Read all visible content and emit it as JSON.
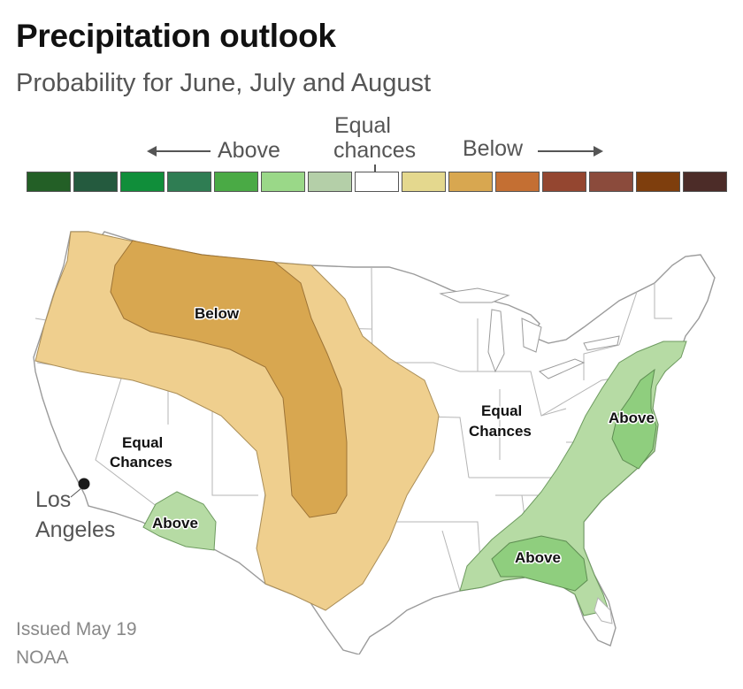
{
  "title": "Precipitation outlook",
  "subtitle": "Probability for June, July and August",
  "legend": {
    "above": "Above",
    "equal_line1": "Equal",
    "equal_line2": "chances",
    "below": "Below",
    "colors": [
      "#235f26",
      "#245a3e",
      "#108e3a",
      "#2f7d53",
      "#4aaa45",
      "#9ad888",
      "#b4cfa8",
      "#ffffff",
      "#e4d88e",
      "#d8a750",
      "#c46f33",
      "#944630",
      "#8b4b3c",
      "#7e3e0d",
      "#4c2c28"
    ]
  },
  "map": {
    "regions": [
      {
        "label": "Below",
        "category": "below",
        "color": "#d8a750"
      },
      {
        "label": "Below",
        "category": "below-outer",
        "color": "#efcf8e"
      },
      {
        "label": "Above",
        "category": "above-southwest",
        "color": "#b6dba4"
      },
      {
        "label": "Above",
        "category": "above-atlantic",
        "color": "#8fce7e"
      },
      {
        "label": "Above",
        "category": "above-florida",
        "color": "#8fce7e"
      }
    ],
    "labels": {
      "below": "Below",
      "equal_west_1": "Equal",
      "equal_west_2": "Chances",
      "equal_east_1": "Equal",
      "equal_east_2": "Chances",
      "above_sw": "Above",
      "above_east": "Above",
      "above_south": "Above"
    },
    "city": {
      "line1": "Los",
      "line2": "Angeles"
    },
    "colors": {
      "land": "#ffffff",
      "border": "#999999",
      "below_inner": "#d8a750",
      "below_outer": "#efcf8e",
      "above_light": "#b6dba4",
      "above_dark": "#8fce7e"
    }
  },
  "footer": {
    "issued": "Issued May 19",
    "source": "NOAA"
  }
}
